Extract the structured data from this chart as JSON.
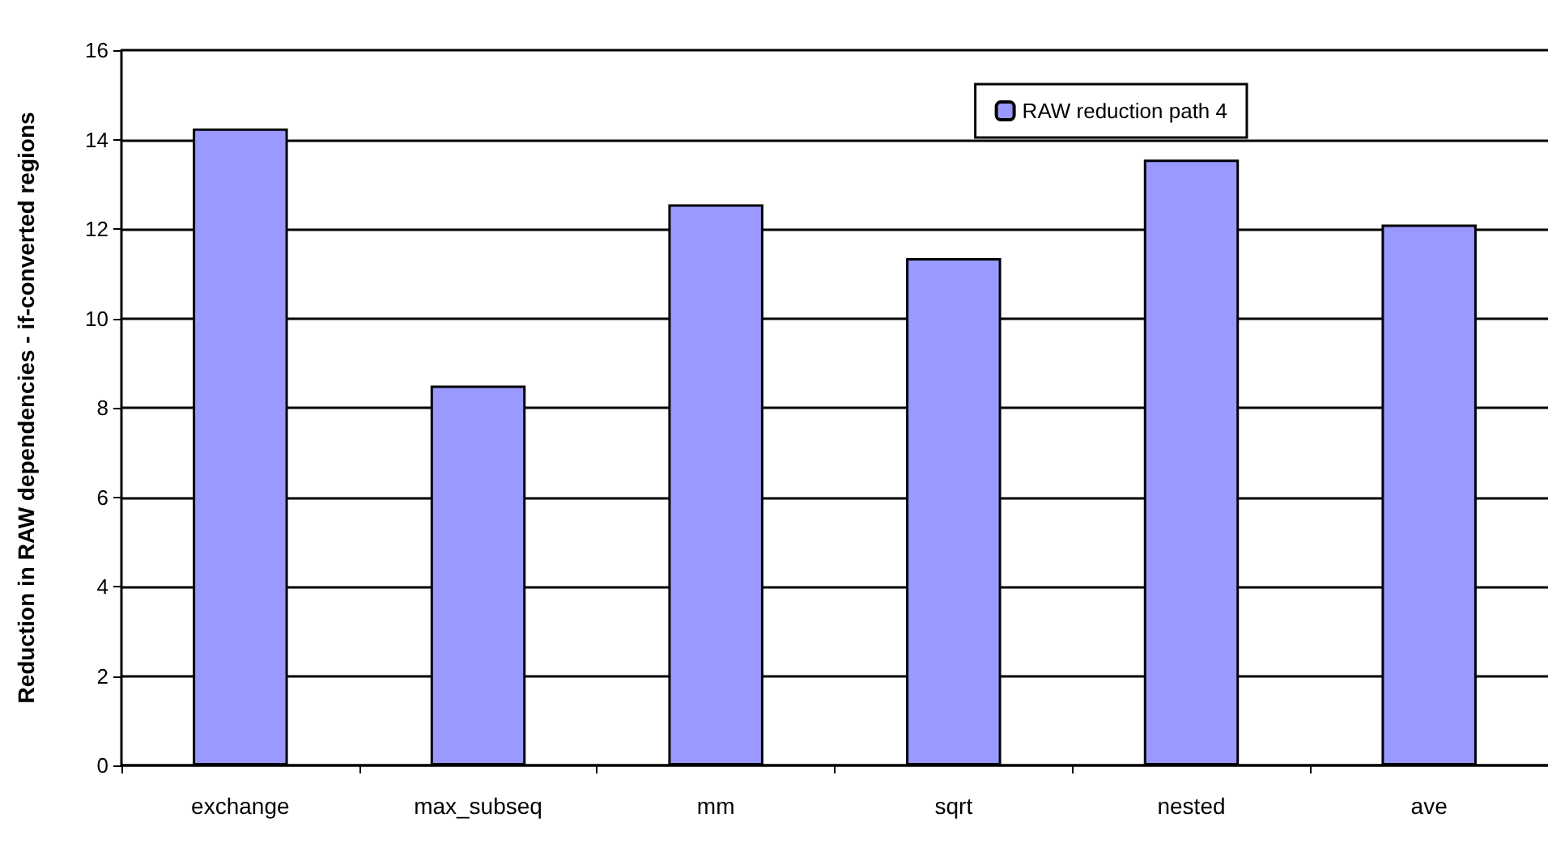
{
  "chart_data": {
    "type": "bar",
    "ylabel": "Reduction in RAW dependencies - if-converted regions",
    "categories": [
      "exchange",
      "max_subseq",
      "mm",
      "sqrt",
      "nested",
      "ave"
    ],
    "series": [
      {
        "name": "RAW reduction path 4",
        "color": "#9999ff",
        "values": [
          14.25,
          8.5,
          12.55,
          11.35,
          13.55,
          12.1
        ]
      }
    ],
    "ylim": [
      0,
      16
    ],
    "yticks": [
      0,
      2,
      4,
      6,
      8,
      10,
      12,
      14,
      16
    ],
    "grid": "y",
    "legend": "top right"
  }
}
